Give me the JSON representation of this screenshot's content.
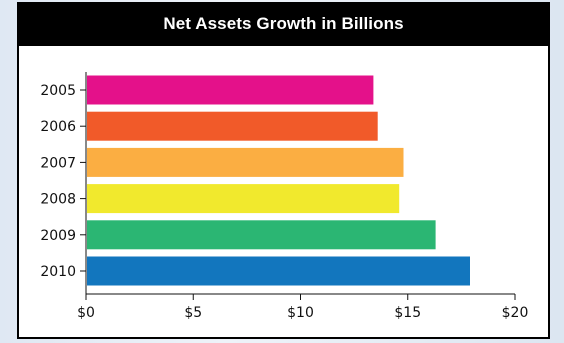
{
  "chart_data": {
    "type": "bar",
    "orientation": "horizontal",
    "title": "Net Assets Growth in Billions",
    "categories": [
      "2005",
      "2006",
      "2007",
      "2008",
      "2009",
      "2010"
    ],
    "values": [
      13.4,
      13.6,
      14.8,
      14.6,
      16.3,
      17.9
    ],
    "colors": [
      "#e4118a",
      "#f15a29",
      "#fbae42",
      "#f1e92d",
      "#2bb673",
      "#1276be"
    ],
    "xlim": [
      0,
      20
    ],
    "x_ticks": [
      "$0",
      "$5",
      "$10",
      "$15",
      "$20"
    ],
    "x_tick_values": [
      0,
      5,
      10,
      15,
      20
    ],
    "grid": false,
    "legend": "none"
  }
}
